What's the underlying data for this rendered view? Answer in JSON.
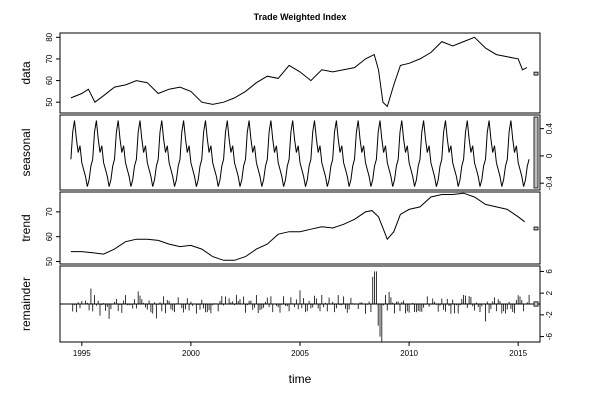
{
  "chart_data": {
    "type": "line",
    "title": "Trade Weighted Index",
    "xlabel": "time",
    "xlim": [
      1994.0,
      2016.0
    ],
    "xticks": [
      1995,
      2000,
      2005,
      2010,
      2015
    ],
    "series": [
      {
        "name": "data",
        "ylim": [
          45,
          82
        ],
        "yticks": [
          50,
          60,
          70,
          80
        ],
        "x": [
          1994.5,
          1995.0,
          1995.3,
          1995.6,
          1996.0,
          1996.5,
          1997.0,
          1997.5,
          1998.0,
          1998.5,
          1999.0,
          1999.5,
          2000.0,
          2000.5,
          2001.0,
          2001.5,
          2002.0,
          2002.5,
          2003.0,
          2003.5,
          2004.0,
          2004.5,
          2005.0,
          2005.5,
          2006.0,
          2006.5,
          2007.0,
          2007.5,
          2008.0,
          2008.4,
          2008.6,
          2008.8,
          2009.0,
          2009.3,
          2009.6,
          2010.0,
          2010.5,
          2011.0,
          2011.5,
          2012.0,
          2012.5,
          2013.0,
          2013.5,
          2014.0,
          2014.5,
          2015.0,
          2015.2,
          2015.4
        ],
        "values": [
          52,
          54,
          56,
          50,
          53,
          57,
          58,
          60,
          59,
          54,
          56,
          57,
          55,
          50,
          49,
          50,
          52,
          55,
          59,
          62,
          61,
          67,
          64,
          60,
          65,
          64,
          65,
          66,
          70,
          72,
          65,
          50,
          48,
          58,
          67,
          68,
          70,
          73,
          78,
          76,
          78,
          80,
          75,
          72,
          71,
          70,
          65,
          66
        ]
      },
      {
        "name": "seasonal",
        "ylim": [
          -0.5,
          0.6
        ],
        "yticks": [
          -0.4,
          0.0,
          0.4
        ],
        "pattern": [
          -0.05,
          0.35,
          0.52,
          0.25,
          0.05,
          0.15,
          -0.1,
          -0.2,
          -0.3,
          -0.45,
          -0.35,
          -0.15
        ],
        "start": 1994.5,
        "end": 2015.5
      },
      {
        "name": "trend",
        "ylim": [
          49,
          78
        ],
        "yticks": [
          50,
          60,
          70
        ],
        "x": [
          1994.5,
          1995.0,
          1995.5,
          1996.0,
          1996.5,
          1997.0,
          1997.5,
          1998.0,
          1998.5,
          1999.0,
          1999.5,
          2000.0,
          2000.5,
          2001.0,
          2001.5,
          2002.0,
          2002.5,
          2003.0,
          2003.5,
          2004.0,
          2004.5,
          2005.0,
          2005.5,
          2006.0,
          2006.5,
          2007.0,
          2007.5,
          2008.0,
          2008.3,
          2008.6,
          2009.0,
          2009.3,
          2009.6,
          2010.0,
          2010.5,
          2011.0,
          2011.5,
          2012.0,
          2012.5,
          2013.0,
          2013.5,
          2014.0,
          2014.5,
          2015.0,
          2015.3
        ],
        "values": [
          54,
          54,
          53.5,
          53,
          55,
          58,
          59,
          59,
          58.5,
          57,
          56,
          56.5,
          55,
          52,
          50.5,
          50.5,
          52,
          55,
          57,
          61,
          62,
          62,
          63,
          64,
          63.5,
          65,
          67,
          70,
          70.5,
          68,
          59,
          62,
          69,
          71,
          72,
          76,
          77,
          77,
          77.5,
          76,
          73,
          72,
          71,
          68,
          66
        ]
      },
      {
        "name": "remainder",
        "ylim": [
          -7,
          7
        ],
        "yticks": [
          -6,
          -2,
          2,
          6
        ],
        "seed": 7,
        "start": 1994.5,
        "end": 2015.5,
        "spikes": [
          {
            "x": 2008.6,
            "values": [
              5,
              6,
              6,
              -4,
              -6,
              -7
            ]
          }
        ]
      }
    ],
    "scale_bars": [
      "data",
      "seasonal",
      "trend",
      "remainder"
    ]
  }
}
